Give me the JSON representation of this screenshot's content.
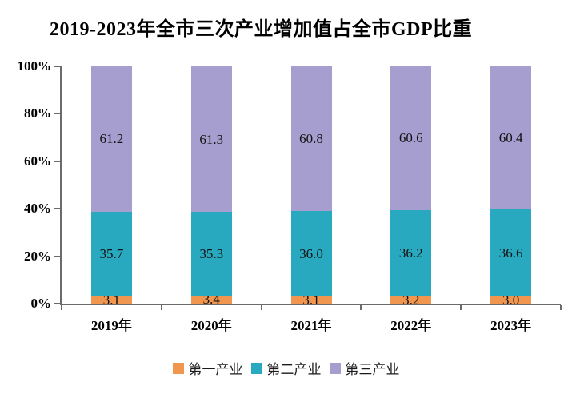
{
  "chart_data": {
    "type": "bar",
    "stacked": true,
    "percent_stacked": true,
    "title": "2019-2023年全市三次产业增加值占全市GDP比重",
    "categories": [
      "2019年",
      "2020年",
      "2021年",
      "2022年",
      "2023年"
    ],
    "series": [
      {
        "name": "第一产业",
        "color": "#F0964F",
        "values": [
          3.1,
          3.4,
          3.1,
          3.2,
          3.0
        ]
      },
      {
        "name": "第二产业",
        "color": "#29A9C0",
        "values": [
          35.7,
          35.3,
          36.0,
          36.2,
          36.6
        ]
      },
      {
        "name": "第三产业",
        "color": "#A79ED0",
        "values": [
          61.2,
          61.3,
          60.8,
          60.6,
          60.4
        ]
      }
    ],
    "xlabel": "",
    "ylabel": "",
    "ylim": [
      0,
      100
    ],
    "yticks": [
      "0%",
      "20%",
      "40%",
      "60%",
      "80%",
      "100%"
    ],
    "grid": false,
    "legend_position": "bottom",
    "axis_color": "#6b6b6b",
    "label_color": "#121212",
    "background_color": "#ffffff"
  }
}
